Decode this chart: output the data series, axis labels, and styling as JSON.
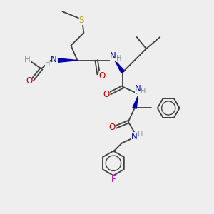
{
  "bg_color": "#eeeeee",
  "atom_colors": {
    "C": "#404040",
    "H": "#7a9a9a",
    "N": "#0000cc",
    "O": "#cc0000",
    "S": "#aaaa00",
    "F": "#cc00cc"
  },
  "bond_color": "#404040",
  "wedge_color": "#0000aa",
  "title": ""
}
